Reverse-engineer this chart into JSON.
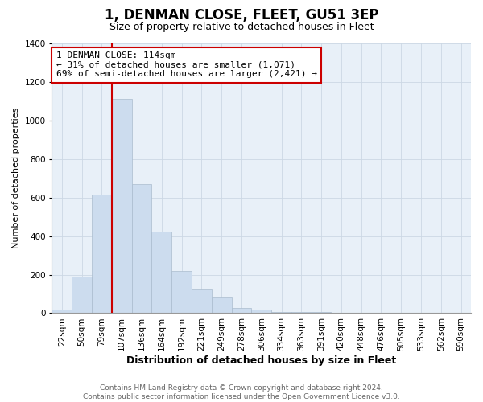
{
  "title": "1, DENMAN CLOSE, FLEET, GU51 3EP",
  "subtitle": "Size of property relative to detached houses in Fleet",
  "xlabel": "Distribution of detached houses by size in Fleet",
  "ylabel": "Number of detached properties",
  "bar_labels": [
    "22sqm",
    "50sqm",
    "79sqm",
    "107sqm",
    "136sqm",
    "164sqm",
    "192sqm",
    "221sqm",
    "249sqm",
    "278sqm",
    "306sqm",
    "334sqm",
    "363sqm",
    "391sqm",
    "420sqm",
    "448sqm",
    "476sqm",
    "505sqm",
    "533sqm",
    "562sqm",
    "590sqm"
  ],
  "bar_values": [
    18,
    190,
    615,
    1110,
    670,
    425,
    220,
    125,
    80,
    28,
    18,
    5,
    5,
    5,
    2,
    1,
    0,
    0,
    0,
    0,
    0
  ],
  "bar_color": "#ccdcee",
  "bar_edge_color": "#aabcce",
  "vline_color": "#cc0000",
  "vline_position": 3.0,
  "annotation_text": "1 DENMAN CLOSE: 114sqm\n← 31% of detached houses are smaller (1,071)\n69% of semi-detached houses are larger (2,421) →",
  "annotation_box_color": "#cc0000",
  "ylim": [
    0,
    1400
  ],
  "yticks": [
    0,
    200,
    400,
    600,
    800,
    1000,
    1200,
    1400
  ],
  "footer_text": "Contains HM Land Registry data © Crown copyright and database right 2024.\nContains public sector information licensed under the Open Government Licence v3.0.",
  "grid_color": "#ccd8e4",
  "bg_color": "#e8f0f8",
  "title_fontsize": 12,
  "subtitle_fontsize": 9,
  "xlabel_fontsize": 9,
  "ylabel_fontsize": 8,
  "tick_fontsize": 7.5,
  "annotation_fontsize": 8,
  "footer_fontsize": 6.5
}
